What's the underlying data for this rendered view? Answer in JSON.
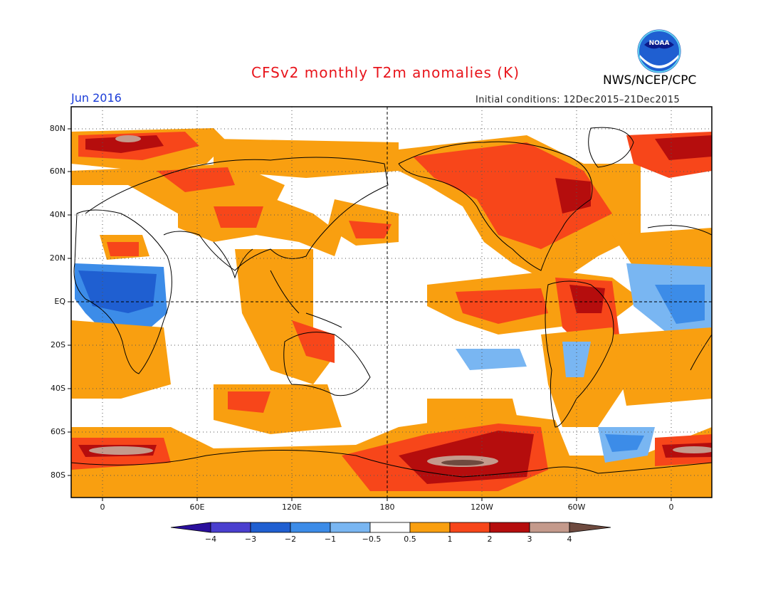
{
  "title": "CFSv2 monthly T2m anomalies (K)",
  "period": "Jun 2016",
  "initial_conditions": "Initial conditions: 12Dec2015–21Dec2015",
  "agency": "NWS/NCEP/CPC",
  "logo": {
    "icon": "noaa-logo-icon",
    "text": "NOAA"
  },
  "lat_labels": [
    "80N",
    "60N",
    "40N",
    "20N",
    "EQ",
    "20S",
    "40S",
    "60S",
    "80S"
  ],
  "lon_labels": [
    "0",
    "60E",
    "120E",
    "180",
    "120W",
    "60W",
    "0"
  ],
  "colorbar": {
    "labels": [
      "−4",
      "−3",
      "−2",
      "−1",
      "−0.5",
      "0.5",
      "1",
      "2",
      "3",
      "4"
    ],
    "colors": [
      "#2a0f9c",
      "#4a3fcf",
      "#1f5fd1",
      "#3c8ce8",
      "#79b6f2",
      "#ffffff",
      "#f99f10",
      "#f7461a",
      "#b50d0d",
      "#c49a8c",
      "#6e4a3f"
    ]
  },
  "map": {
    "lon_range": [
      -20,
      20
    ],
    "lat_range": [
      -90,
      90
    ],
    "palette": {
      "land_line": "#000000",
      "grid": "#555555"
    }
  }
}
